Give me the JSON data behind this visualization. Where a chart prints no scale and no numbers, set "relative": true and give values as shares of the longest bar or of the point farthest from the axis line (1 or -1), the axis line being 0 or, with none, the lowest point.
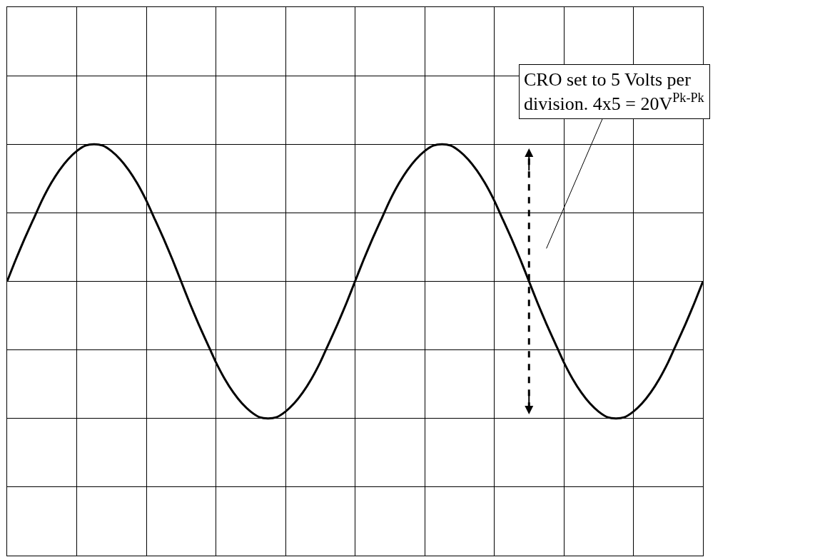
{
  "chart_data": {
    "type": "line",
    "relative": true,
    "color": "#000000",
    "categories": [
      null,
      null,
      null,
      null,
      null,
      null,
      null,
      null,
      null,
      null,
      null,
      null,
      null,
      null,
      null,
      null,
      null,
      null,
      null,
      null,
      null,
      null,
      null,
      null,
      null,
      null,
      null,
      null,
      null,
      null,
      null,
      null,
      null,
      null,
      null,
      null,
      null,
      null,
      null,
      null,
      null,
      null,
      null,
      null,
      null,
      null,
      null,
      null,
      null,
      null,
      null,
      null,
      null,
      null,
      null,
      null,
      null,
      null,
      null,
      null,
      null,
      null,
      null,
      null,
      null,
      null,
      null,
      null,
      null,
      null,
      null,
      null,
      null,
      null,
      null,
      null,
      null,
      null,
      null,
      null,
      null
    ],
    "values": [
      0,
      0.16,
      0.31,
      0.45,
      0.59,
      0.71,
      0.81,
      0.89,
      0.95,
      0.99,
      1,
      0.99,
      0.95,
      0.89,
      0.81,
      0.71,
      0.59,
      0.45,
      0.31,
      0.16,
      0,
      -0.16,
      -0.31,
      -0.45,
      -0.59,
      -0.71,
      -0.81,
      -0.89,
      -0.95,
      -0.99,
      -1,
      -0.99,
      -0.95,
      -0.89,
      -0.81,
      -0.71,
      -0.59,
      -0.45,
      -0.31,
      -0.16,
      0,
      0.16,
      0.31,
      0.45,
      0.59,
      0.71,
      0.81,
      0.89,
      0.95,
      0.99,
      1,
      0.99,
      0.95,
      0.89,
      0.81,
      0.71,
      0.59,
      0.45,
      0.31,
      0.16,
      0,
      -0.16,
      -0.31,
      -0.45,
      -0.59,
      -0.71,
      -0.81,
      -0.89,
      -0.95,
      -0.99,
      -1,
      -0.99,
      -0.95,
      -0.89,
      -0.81,
      -0.71,
      -0.59,
      -0.45,
      -0.31,
      -0.16,
      0
    ],
    "grid": true,
    "marker": "none",
    "line_style": "solid",
    "annotations": [
      "CRO set to 5 Volts per division. 4x5 = 20V$^{Pk-Pk}$"
    ]
  }
}
